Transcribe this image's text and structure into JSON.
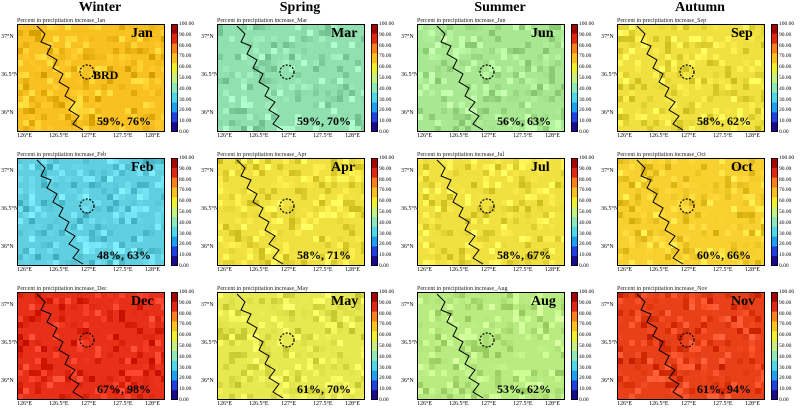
{
  "seasons": [
    "Winter",
    "Spring",
    "Summer",
    "Autumn"
  ],
  "chart_data": {
    "type": "heatmap",
    "layout": "4 columns by season, 3 rows of monthly panels",
    "colorbar": {
      "ticks": [
        "100.00",
        "90.00",
        "80.00",
        "70.00",
        "60.00",
        "50.00",
        "40.00",
        "30.00",
        "20.00",
        "10.00",
        "0.00"
      ],
      "colors": [
        "#1a0a8c",
        "#2040e0",
        "#1ea0f0",
        "#50d8e8",
        "#8ee8b8",
        "#c8f080",
        "#f0f030",
        "#f8c020",
        "#f88018",
        "#e02810",
        "#a00808"
      ]
    },
    "x_ticks": [
      "126°E",
      "126.5°E",
      "127°E",
      "127.5°E",
      "128°E"
    ],
    "y_ticks": [
      "37°N",
      "36.5°N",
      "36°N"
    ],
    "annotation_label": "BRD",
    "panels": [
      {
        "season": "Winter",
        "title": "Percent in precipitation increase_Jan",
        "month": "Jan",
        "values": "59%, 76%",
        "mean_pct": 59,
        "dominant_color": "#f8c020"
      },
      {
        "season": "Winter",
        "title": "Percent in precipitation increase_Feb",
        "month": "Feb",
        "values": "48%, 63%",
        "mean_pct": 48,
        "dominant_color": "#60d0e0"
      },
      {
        "season": "Winter",
        "title": "Percent in precipitation increase_Dec",
        "month": "Dec",
        "values": "67%, 98%",
        "mean_pct": 67,
        "dominant_color": "#e83018"
      },
      {
        "season": "Spring",
        "title": "Percent in precipitation increase_Mar",
        "month": "Mar",
        "values": "59%, 70%",
        "mean_pct": 59,
        "dominant_color": "#90e0b0"
      },
      {
        "season": "Spring",
        "title": "Percent in precipitation increase_Apr",
        "month": "Apr",
        "values": "58%, 71%",
        "mean_pct": 58,
        "dominant_color": "#f0e040"
      },
      {
        "season": "Spring",
        "title": "Percent in precipitation increase_May",
        "month": "May",
        "values": "61%, 70%",
        "mean_pct": 61,
        "dominant_color": "#e8e850"
      },
      {
        "season": "Summer",
        "title": "Percent in precipitation increase_Jun",
        "month": "Jun",
        "values": "56%, 63%",
        "mean_pct": 56,
        "dominant_color": "#a8e890"
      },
      {
        "season": "Summer",
        "title": "Percent in precipitation increase_Jul",
        "month": "Jul",
        "values": "58%, 67%",
        "mean_pct": 58,
        "dominant_color": "#f0e040"
      },
      {
        "season": "Summer",
        "title": "Percent in precipitation increase_Aug",
        "month": "Aug",
        "values": "53%, 62%",
        "mean_pct": 53,
        "dominant_color": "#b8ec80"
      },
      {
        "season": "Autumn",
        "title": "Percent in precipitation increase_Sep",
        "month": "Sep",
        "values": "58%, 62%",
        "mean_pct": 58,
        "dominant_color": "#f0e040"
      },
      {
        "season": "Autumn",
        "title": "Percent in precipitation increase_Oct",
        "month": "Oct",
        "values": "60%, 66%",
        "mean_pct": 60,
        "dominant_color": "#f8d030"
      },
      {
        "season": "Autumn",
        "title": "Percent in precipitation increase_Nov",
        "month": "Nov",
        "values": "61%, 94%",
        "mean_pct": 61,
        "dominant_color": "#e84018"
      }
    ]
  }
}
